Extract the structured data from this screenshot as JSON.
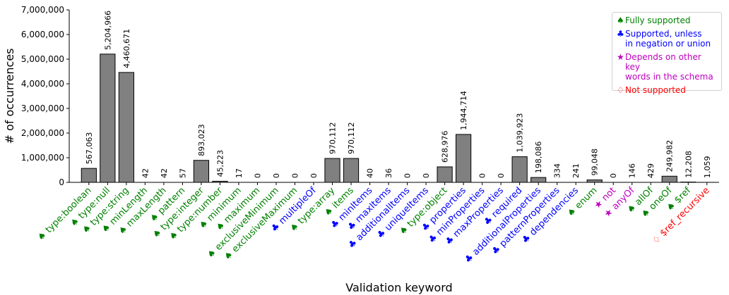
{
  "chart_data": {
    "type": "bar",
    "xlabel": "Validation keyword",
    "ylabel": "# of occurrences",
    "ylim": [
      0,
      7000000
    ],
    "yticks": [
      "0",
      "1,000,000",
      "2,000,000",
      "3,000,000",
      "4,000,000",
      "5,000,000",
      "6,000,000",
      "7,000,000"
    ],
    "grid": false,
    "legend_position": "top-right",
    "categories": [
      {
        "label": "type:boolean",
        "value": 567063,
        "value_label": "567,063",
        "support": "full"
      },
      {
        "label": "type:null",
        "value": 5204966,
        "value_label": "5,204,966",
        "support": "full"
      },
      {
        "label": "type:string",
        "value": 4460671,
        "value_label": "4,460,671",
        "support": "full"
      },
      {
        "label": "minLength",
        "value": 42,
        "value_label": "42",
        "support": "full"
      },
      {
        "label": "maxLength",
        "value": 42,
        "value_label": "42",
        "support": "full"
      },
      {
        "label": "pattern",
        "value": 57,
        "value_label": "57",
        "support": "full"
      },
      {
        "label": "type:integer",
        "value": 893023,
        "value_label": "893,023",
        "support": "full"
      },
      {
        "label": "type:number",
        "value": 45223,
        "value_label": "45,223",
        "support": "full"
      },
      {
        "label": "minimum",
        "value": 17,
        "value_label": "17",
        "support": "full"
      },
      {
        "label": "maximum",
        "value": 0,
        "value_label": "0",
        "support": "full"
      },
      {
        "label": "exclusiveMinimum",
        "value": 0,
        "value_label": "0",
        "support": "full"
      },
      {
        "label": "exclusiveMaximum",
        "value": 0,
        "value_label": "0",
        "support": "full"
      },
      {
        "label": "multipleOf",
        "value": 0,
        "value_label": "0",
        "support": "unless"
      },
      {
        "label": "type:array",
        "value": 970112,
        "value_label": "970,112",
        "support": "full"
      },
      {
        "label": "items",
        "value": 970112,
        "value_label": "970,112",
        "support": "full"
      },
      {
        "label": "minItems",
        "value": 40,
        "value_label": "40",
        "support": "unless"
      },
      {
        "label": "maxItems",
        "value": 36,
        "value_label": "36",
        "support": "unless"
      },
      {
        "label": "additionalItems",
        "value": 0,
        "value_label": "0",
        "support": "unless"
      },
      {
        "label": "uniqueItems",
        "value": 0,
        "value_label": "0",
        "support": "unless"
      },
      {
        "label": "type:object",
        "value": 628976,
        "value_label": "628,976",
        "support": "full"
      },
      {
        "label": "properties",
        "value": 1944714,
        "value_label": "1,944,714",
        "support": "unless"
      },
      {
        "label": "minProperties",
        "value": 0,
        "value_label": "0",
        "support": "unless"
      },
      {
        "label": "maxProperties",
        "value": 0,
        "value_label": "0",
        "support": "unless"
      },
      {
        "label": "required",
        "value": 1039923,
        "value_label": "1,039,923",
        "support": "unless"
      },
      {
        "label": "additionalProperties",
        "value": 198086,
        "value_label": "198,086",
        "support": "unless"
      },
      {
        "label": "patternProperties",
        "value": 334,
        "value_label": "334",
        "support": "unless"
      },
      {
        "label": "dependencies",
        "value": 241,
        "value_label": "241",
        "support": "unless"
      },
      {
        "label": "enum",
        "value": 99048,
        "value_label": "99,048",
        "support": "full"
      },
      {
        "label": "not",
        "value": 0,
        "value_label": "0",
        "support": "depends"
      },
      {
        "label": "anyOf",
        "value": 146,
        "value_label": "146",
        "support": "depends"
      },
      {
        "label": "allOf",
        "value": 429,
        "value_label": "429",
        "support": "full"
      },
      {
        "label": "oneOf",
        "value": 249982,
        "value_label": "249,982",
        "support": "full"
      },
      {
        "label": "$ref",
        "value": 12208,
        "value_label": "12,208",
        "support": "full"
      },
      {
        "label": "$ref_recursive",
        "value": 1059,
        "value_label": "1,059",
        "support": "none"
      }
    ],
    "legend": [
      {
        "key": "full",
        "symbol": "♠",
        "text": "Fully supported",
        "color": "#008000"
      },
      {
        "key": "unless",
        "symbol": "♣",
        "text": "Supported, unless\nin negation or union",
        "color": "#0000ff"
      },
      {
        "key": "depends",
        "symbol": "★",
        "text": "Depends on other key\nwords in the schema",
        "color": "#bf00bf"
      },
      {
        "key": "none",
        "symbol": "♢",
        "text": "Not supported",
        "color": "#ff0000"
      }
    ],
    "bar_color": "#808080"
  }
}
